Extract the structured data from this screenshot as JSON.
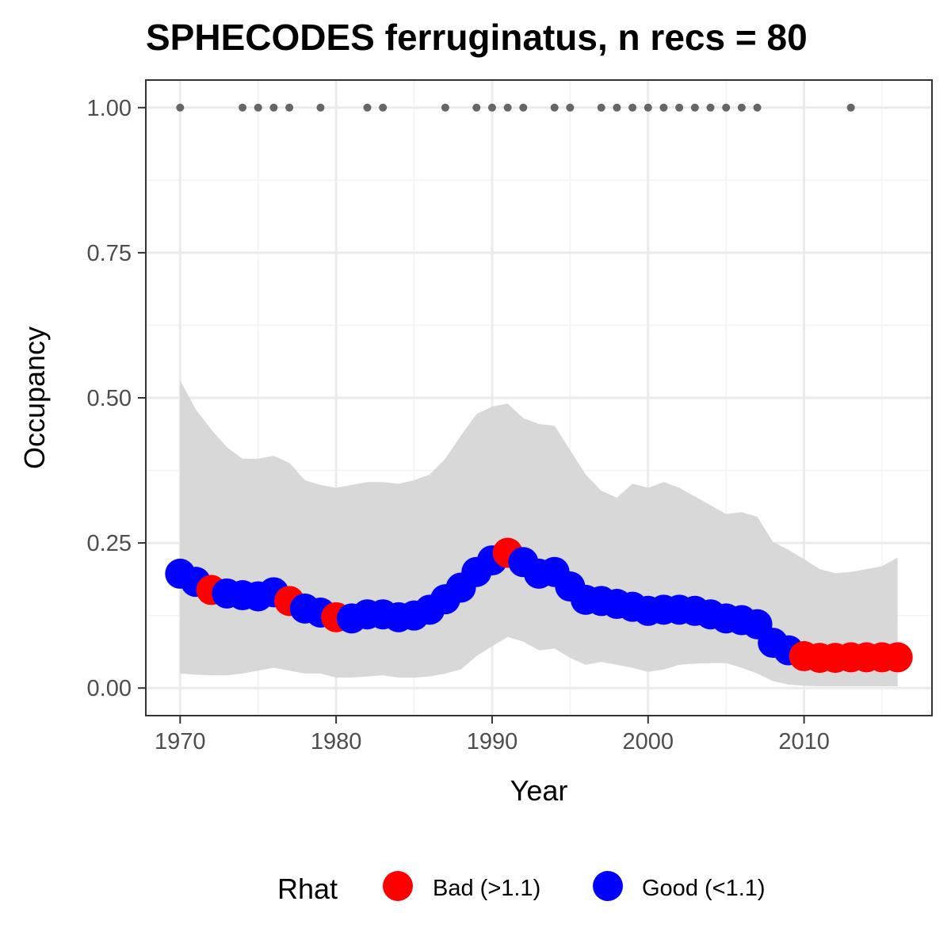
{
  "chart_data": {
    "type": "line",
    "title": "SPHECODES ferruginatus, n recs = 80",
    "xlabel": "Year",
    "ylabel": "Occupancy",
    "xlim": [
      1967.8,
      2018.2
    ],
    "ylim": [
      -0.0475,
      1.0475
    ],
    "x_ticks": [
      1970,
      1980,
      1990,
      2000,
      2010
    ],
    "y_ticks": [
      0.0,
      0.25,
      0.5,
      0.75,
      1.0
    ],
    "x_tick_labels": [
      "1970",
      "1980",
      "1990",
      "2000",
      "2010"
    ],
    "y_tick_labels": [
      "0.00",
      "0.25",
      "0.50",
      "0.75",
      "1.00"
    ],
    "grid": true,
    "legend": {
      "title": "Rhat",
      "position": "bottom",
      "entries": [
        {
          "label": "Bad (>1.1)",
          "color": "#ff0000"
        },
        {
          "label": "Good (<1.1)",
          "color": "#0000ff"
        }
      ]
    },
    "colors": {
      "bad": "#ff0000",
      "good": "#0000ff",
      "ribbon": "#d6d6d6",
      "records": "#666666"
    },
    "years": [
      1970,
      1971,
      1972,
      1973,
      1974,
      1975,
      1976,
      1977,
      1978,
      1979,
      1980,
      1981,
      1982,
      1983,
      1984,
      1985,
      1986,
      1987,
      1988,
      1989,
      1990,
      1991,
      1992,
      1993,
      1994,
      1995,
      1996,
      1997,
      1998,
      1999,
      2000,
      2001,
      2002,
      2003,
      2004,
      2005,
      2006,
      2007,
      2008,
      2009,
      2010,
      2011,
      2012,
      2013,
      2014,
      2015,
      2016
    ],
    "mean": [
      0.197,
      0.183,
      0.169,
      0.163,
      0.16,
      0.158,
      0.165,
      0.15,
      0.137,
      0.13,
      0.122,
      0.12,
      0.127,
      0.127,
      0.122,
      0.125,
      0.135,
      0.153,
      0.173,
      0.2,
      0.22,
      0.233,
      0.217,
      0.197,
      0.2,
      0.175,
      0.152,
      0.15,
      0.145,
      0.14,
      0.133,
      0.135,
      0.135,
      0.133,
      0.127,
      0.12,
      0.117,
      0.11,
      0.078,
      0.065,
      0.055,
      0.052,
      0.052,
      0.053,
      0.053,
      0.053,
      0.053
    ],
    "rhat": [
      "good",
      "good",
      "bad",
      "good",
      "good",
      "good",
      "good",
      "bad",
      "good",
      "good",
      "bad",
      "good",
      "good",
      "good",
      "good",
      "good",
      "good",
      "good",
      "good",
      "good",
      "good",
      "bad",
      "good",
      "good",
      "good",
      "good",
      "good",
      "good",
      "good",
      "good",
      "good",
      "good",
      "good",
      "good",
      "good",
      "good",
      "good",
      "good",
      "good",
      "good",
      "bad",
      "bad",
      "bad",
      "bad",
      "bad",
      "bad",
      "bad"
    ],
    "upper": [
      0.53,
      0.48,
      0.445,
      0.415,
      0.395,
      0.395,
      0.4,
      0.388,
      0.358,
      0.35,
      0.345,
      0.35,
      0.355,
      0.355,
      0.352,
      0.358,
      0.368,
      0.395,
      0.435,
      0.472,
      0.485,
      0.49,
      0.465,
      0.455,
      0.452,
      0.41,
      0.368,
      0.34,
      0.328,
      0.352,
      0.345,
      0.355,
      0.345,
      0.33,
      0.315,
      0.3,
      0.303,
      0.295,
      0.252,
      0.238,
      0.222,
      0.205,
      0.198,
      0.2,
      0.205,
      0.21,
      0.225
    ],
    "lower": [
      0.025,
      0.023,
      0.022,
      0.022,
      0.025,
      0.03,
      0.035,
      0.03,
      0.025,
      0.025,
      0.018,
      0.018,
      0.02,
      0.022,
      0.018,
      0.018,
      0.02,
      0.025,
      0.032,
      0.055,
      0.072,
      0.088,
      0.08,
      0.065,
      0.068,
      0.052,
      0.04,
      0.045,
      0.04,
      0.035,
      0.028,
      0.032,
      0.04,
      0.042,
      0.043,
      0.043,
      0.035,
      0.025,
      0.012,
      0.006,
      0.004,
      0.003,
      0.003,
      0.003,
      0.003,
      0.003,
      0.003
    ],
    "record_years": [
      1970,
      1974,
      1975,
      1976,
      1977,
      1979,
      1982,
      1983,
      1987,
      1989,
      1990,
      1991,
      1992,
      1994,
      1995,
      1997,
      1998,
      1999,
      2000,
      2001,
      2002,
      2003,
      2004,
      2005,
      2006,
      2007,
      2013
    ],
    "record_value": 1.0
  }
}
